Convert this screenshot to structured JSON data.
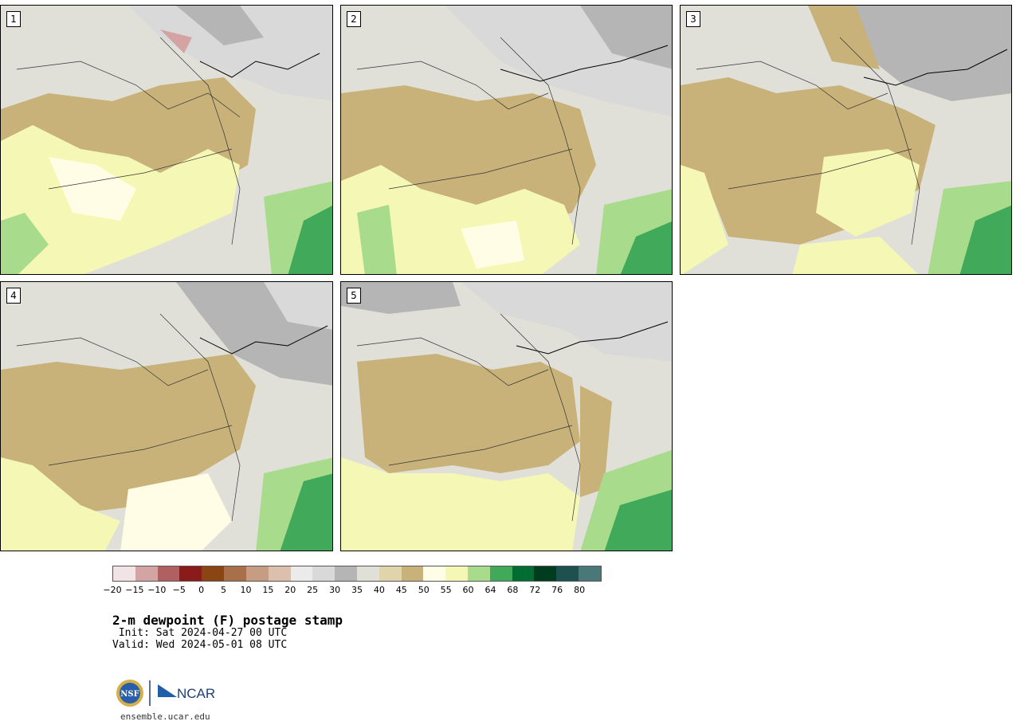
{
  "panels": [
    {
      "number": "1"
    },
    {
      "number": "2"
    },
    {
      "number": "3"
    },
    {
      "number": "4"
    },
    {
      "number": "5"
    }
  ],
  "colorbar": {
    "colors": [
      "#f2e4e4",
      "#d4a3a3",
      "#b06060",
      "#8b1a1a",
      "#8b4513",
      "#a8704a",
      "#c69c82",
      "#ddbfae",
      "#ebebeb",
      "#d9d9d9",
      "#b5b5b5",
      "#e0e0d8",
      "#e0d4aa",
      "#c8b27a",
      "#fffde6",
      "#f5f8b4",
      "#a8dc8c",
      "#40aa5a",
      "#006e32",
      "#003c1e",
      "#1e5050",
      "#4a7878"
    ],
    "ticks": [
      "−20",
      "−15",
      "−10",
      "−5",
      "0",
      "5",
      "10",
      "15",
      "20",
      "25",
      "30",
      "35",
      "40",
      "45",
      "50",
      "55",
      "60",
      "64",
      "68",
      "72",
      "76",
      "80"
    ]
  },
  "title": "2-m dewpoint (F) postage stamp",
  "init": " Init: Sat 2024-04-27 00 UTC",
  "valid": "Valid: Wed 2024-05-01 08 UTC",
  "logo": {
    "nsf_text": "NSF",
    "ncar_text": "NCAR"
  },
  "website": "ensemble.ucar.edu"
}
